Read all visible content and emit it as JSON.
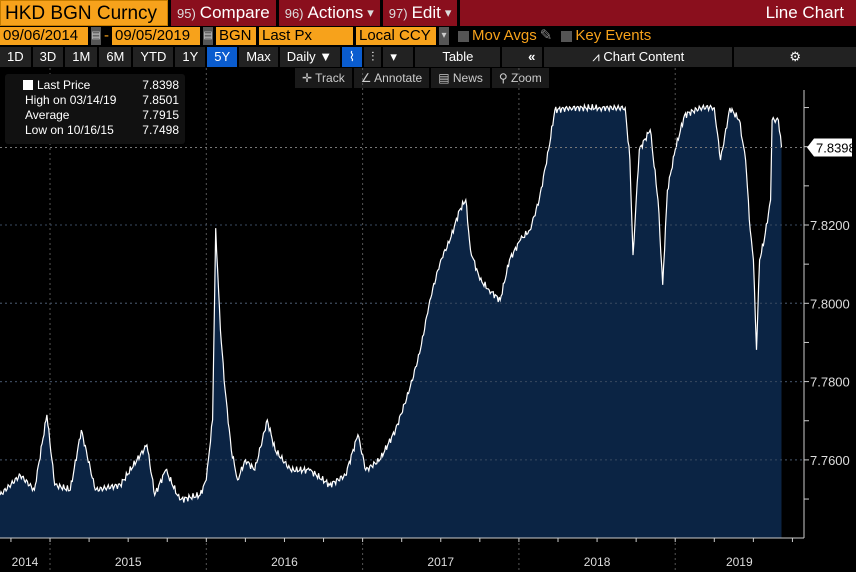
{
  "header": {
    "ticker": "HKD BGN Curncy",
    "compare": {
      "num": "95)",
      "label": "Compare"
    },
    "actions": {
      "num": "96)",
      "label": "Actions"
    },
    "edit": {
      "num": "97)",
      "label": "Edit"
    },
    "title": "Line Chart"
  },
  "params": {
    "start_date": "09/06/2014",
    "sep": "-",
    "end_date": "09/05/2019",
    "source": "BGN",
    "field": "Last Px",
    "currency": "Local CCY",
    "mov_avgs": "Mov Avgs",
    "key_events": "Key Events"
  },
  "toolbar": {
    "periods": [
      "1D",
      "3D",
      "1M",
      "6M",
      "YTD",
      "1Y",
      "5Y",
      "Max"
    ],
    "active": "5Y",
    "frequency": "Daily ▼",
    "table": "Table",
    "chart_content": "Chart Content"
  },
  "tools": {
    "track": "Track",
    "annotate": "Annotate",
    "news": "News",
    "zoom": "Zoom"
  },
  "legend": [
    {
      "label": "Last Price",
      "value": "7.8398"
    },
    {
      "label": "High on 03/14/19",
      "value": "7.8501"
    },
    {
      "label": "Average",
      "value": "7.7915"
    },
    {
      "label": "Low on 10/16/15",
      "value": "7.7498"
    }
  ],
  "chart_data": {
    "type": "area",
    "series_name": "Last Price",
    "x_units": "decimal year",
    "ylim": [
      7.7445,
      7.8555
    ],
    "xlim": [
      2014.68,
      2019.82
    ],
    "y_ticks": [
      "7.7600",
      "7.7800",
      "7.8000",
      "7.8200"
    ],
    "y_tick_values": [
      7.76,
      7.78,
      7.8,
      7.82
    ],
    "x_ticks": [
      "2014",
      "2015",
      "2016",
      "2017",
      "2018",
      "2019"
    ],
    "x_year_starts": [
      2015,
      2016,
      2017,
      2018,
      2019
    ],
    "last_label": "7.8398",
    "last_value": 7.8398,
    "points": [
      [
        2014.68,
        7.751
      ],
      [
        2014.81,
        7.7561
      ],
      [
        2014.9,
        7.7523
      ],
      [
        2014.98,
        7.7715
      ],
      [
        2015.03,
        7.7536
      ],
      [
        2015.13,
        7.7523
      ],
      [
        2015.2,
        7.7676
      ],
      [
        2015.29,
        7.7523
      ],
      [
        2015.45,
        7.7536
      ],
      [
        2015.62,
        7.7638
      ],
      [
        2015.67,
        7.751
      ],
      [
        2015.74,
        7.7574
      ],
      [
        2015.83,
        7.7498
      ],
      [
        2015.96,
        7.751
      ],
      [
        2016.0,
        7.7549
      ],
      [
        2016.04,
        7.7702
      ],
      [
        2016.06,
        7.8192
      ],
      [
        2016.09,
        7.7932
      ],
      [
        2016.12,
        7.7779
      ],
      [
        2016.16,
        7.7625
      ],
      [
        2016.2,
        7.7549
      ],
      [
        2016.25,
        7.76
      ],
      [
        2016.31,
        7.7574
      ],
      [
        2016.39,
        7.7702
      ],
      [
        2016.44,
        7.7625
      ],
      [
        2016.54,
        7.7574
      ],
      [
        2016.66,
        7.7574
      ],
      [
        2016.79,
        7.7536
      ],
      [
        2016.89,
        7.7561
      ],
      [
        2016.97,
        7.7664
      ],
      [
        2017.02,
        7.7574
      ],
      [
        2017.11,
        7.76
      ],
      [
        2017.21,
        7.7676
      ],
      [
        2017.3,
        7.7779
      ],
      [
        2017.37,
        7.7881
      ],
      [
        2017.43,
        7.8008
      ],
      [
        2017.5,
        7.8111
      ],
      [
        2017.56,
        7.8162
      ],
      [
        2017.62,
        7.8238
      ],
      [
        2017.66,
        7.8264
      ],
      [
        2017.69,
        7.8136
      ],
      [
        2017.75,
        7.806
      ],
      [
        2017.81,
        7.8034
      ],
      [
        2017.88,
        7.8008
      ],
      [
        2017.94,
        7.8111
      ],
      [
        2018.01,
        7.8162
      ],
      [
        2018.07,
        7.8187
      ],
      [
        2018.13,
        7.8264
      ],
      [
        2018.19,
        7.8392
      ],
      [
        2018.23,
        7.8494
      ],
      [
        2018.33,
        7.8499
      ],
      [
        2018.52,
        7.8499
      ],
      [
        2018.68,
        7.8499
      ],
      [
        2018.71,
        7.8366
      ],
      [
        2018.73,
        7.8123
      ],
      [
        2018.77,
        7.8392
      ],
      [
        2018.84,
        7.8443
      ],
      [
        2018.89,
        7.8264
      ],
      [
        2018.92,
        7.8047
      ],
      [
        2018.95,
        7.8289
      ],
      [
        2019.0,
        7.8392
      ],
      [
        2019.06,
        7.8481
      ],
      [
        2019.16,
        7.8499
      ],
      [
        2019.22,
        7.8501
      ],
      [
        2019.25,
        7.8499
      ],
      [
        2019.29,
        7.8366
      ],
      [
        2019.35,
        7.8499
      ],
      [
        2019.41,
        7.8468
      ],
      [
        2019.45,
        7.8366
      ],
      [
        2019.48,
        7.8187
      ],
      [
        2019.5,
        7.8111
      ],
      [
        2019.52,
        7.7881
      ],
      [
        2019.54,
        7.8111
      ],
      [
        2019.57,
        7.8162
      ],
      [
        2019.61,
        7.8264
      ],
      [
        2019.62,
        7.8468
      ],
      [
        2019.66,
        7.8468
      ],
      [
        2019.68,
        7.8398
      ]
    ]
  },
  "colors": {
    "orange": "#f7a21b",
    "red": "#8a0f1d",
    "fill": "#0b2444",
    "blue": "#0a5ccf"
  }
}
